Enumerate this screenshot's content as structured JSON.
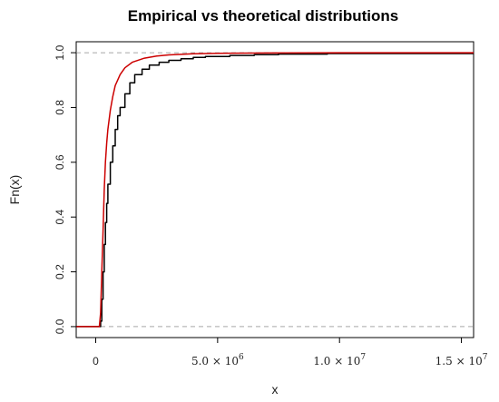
{
  "chart_data": {
    "type": "line",
    "title": "Empirical vs theoretical distributions",
    "xlabel": "x",
    "ylabel": "Fn(x)",
    "xlim": [
      -800000,
      15500000
    ],
    "ylim": [
      -0.04,
      1.04
    ],
    "x_ticks": [
      {
        "value": 0,
        "mantissa": "0",
        "exponent": ""
      },
      {
        "value": 5000000,
        "mantissa": "5.0 × 10",
        "exponent": "6"
      },
      {
        "value": 10000000,
        "mantissa": "1.0 × 10",
        "exponent": "7"
      },
      {
        "value": 15000000,
        "mantissa": "1.5 × 10",
        "exponent": "7"
      }
    ],
    "y_ticks": [
      {
        "value": 0.0,
        "label": "0.0"
      },
      {
        "value": 0.2,
        "label": "0.2"
      },
      {
        "value": 0.4,
        "label": "0.4"
      },
      {
        "value": 0.6,
        "label": "0.6"
      },
      {
        "value": 0.8,
        "label": "0.8"
      },
      {
        "value": 1.0,
        "label": "1.0"
      }
    ],
    "reference_lines": [
      0,
      1
    ],
    "grid": false,
    "legend": "none",
    "series": [
      {
        "color": "#000000",
        "step": true,
        "points": [
          [
            -800000,
            0.0
          ],
          [
            150000,
            0.0
          ],
          [
            200000,
            0.02
          ],
          [
            250000,
            0.1
          ],
          [
            300000,
            0.2
          ],
          [
            350000,
            0.3
          ],
          [
            400000,
            0.38
          ],
          [
            450000,
            0.45
          ],
          [
            500000,
            0.52
          ],
          [
            600000,
            0.6
          ],
          [
            700000,
            0.66
          ],
          [
            800000,
            0.72
          ],
          [
            900000,
            0.77
          ],
          [
            1000000,
            0.8
          ],
          [
            1200000,
            0.85
          ],
          [
            1400000,
            0.89
          ],
          [
            1600000,
            0.92
          ],
          [
            1900000,
            0.94
          ],
          [
            2200000,
            0.955
          ],
          [
            2600000,
            0.965
          ],
          [
            3000000,
            0.972
          ],
          [
            3500000,
            0.978
          ],
          [
            4000000,
            0.983
          ],
          [
            4500000,
            0.986
          ],
          [
            5500000,
            0.99
          ],
          [
            6500000,
            0.993
          ],
          [
            7500000,
            0.995
          ],
          [
            9500000,
            0.997
          ],
          [
            15500000,
            0.997
          ]
        ]
      },
      {
        "color": "#cc0000",
        "step": false,
        "points": [
          [
            -800000,
            0.0
          ],
          [
            150000,
            0.0
          ],
          [
            200000,
            0.05
          ],
          [
            250000,
            0.2
          ],
          [
            300000,
            0.35
          ],
          [
            350000,
            0.5
          ],
          [
            400000,
            0.6
          ],
          [
            450000,
            0.67
          ],
          [
            500000,
            0.72
          ],
          [
            600000,
            0.79
          ],
          [
            700000,
            0.84
          ],
          [
            800000,
            0.88
          ],
          [
            1000000,
            0.92
          ],
          [
            1200000,
            0.945
          ],
          [
            1500000,
            0.965
          ],
          [
            2000000,
            0.98
          ],
          [
            2500000,
            0.988
          ],
          [
            3000000,
            0.992
          ],
          [
            4000000,
            0.996
          ],
          [
            5000000,
            0.998
          ],
          [
            7000000,
            0.999
          ],
          [
            10000000,
            1.0
          ],
          [
            15500000,
            1.0
          ]
        ]
      }
    ]
  }
}
